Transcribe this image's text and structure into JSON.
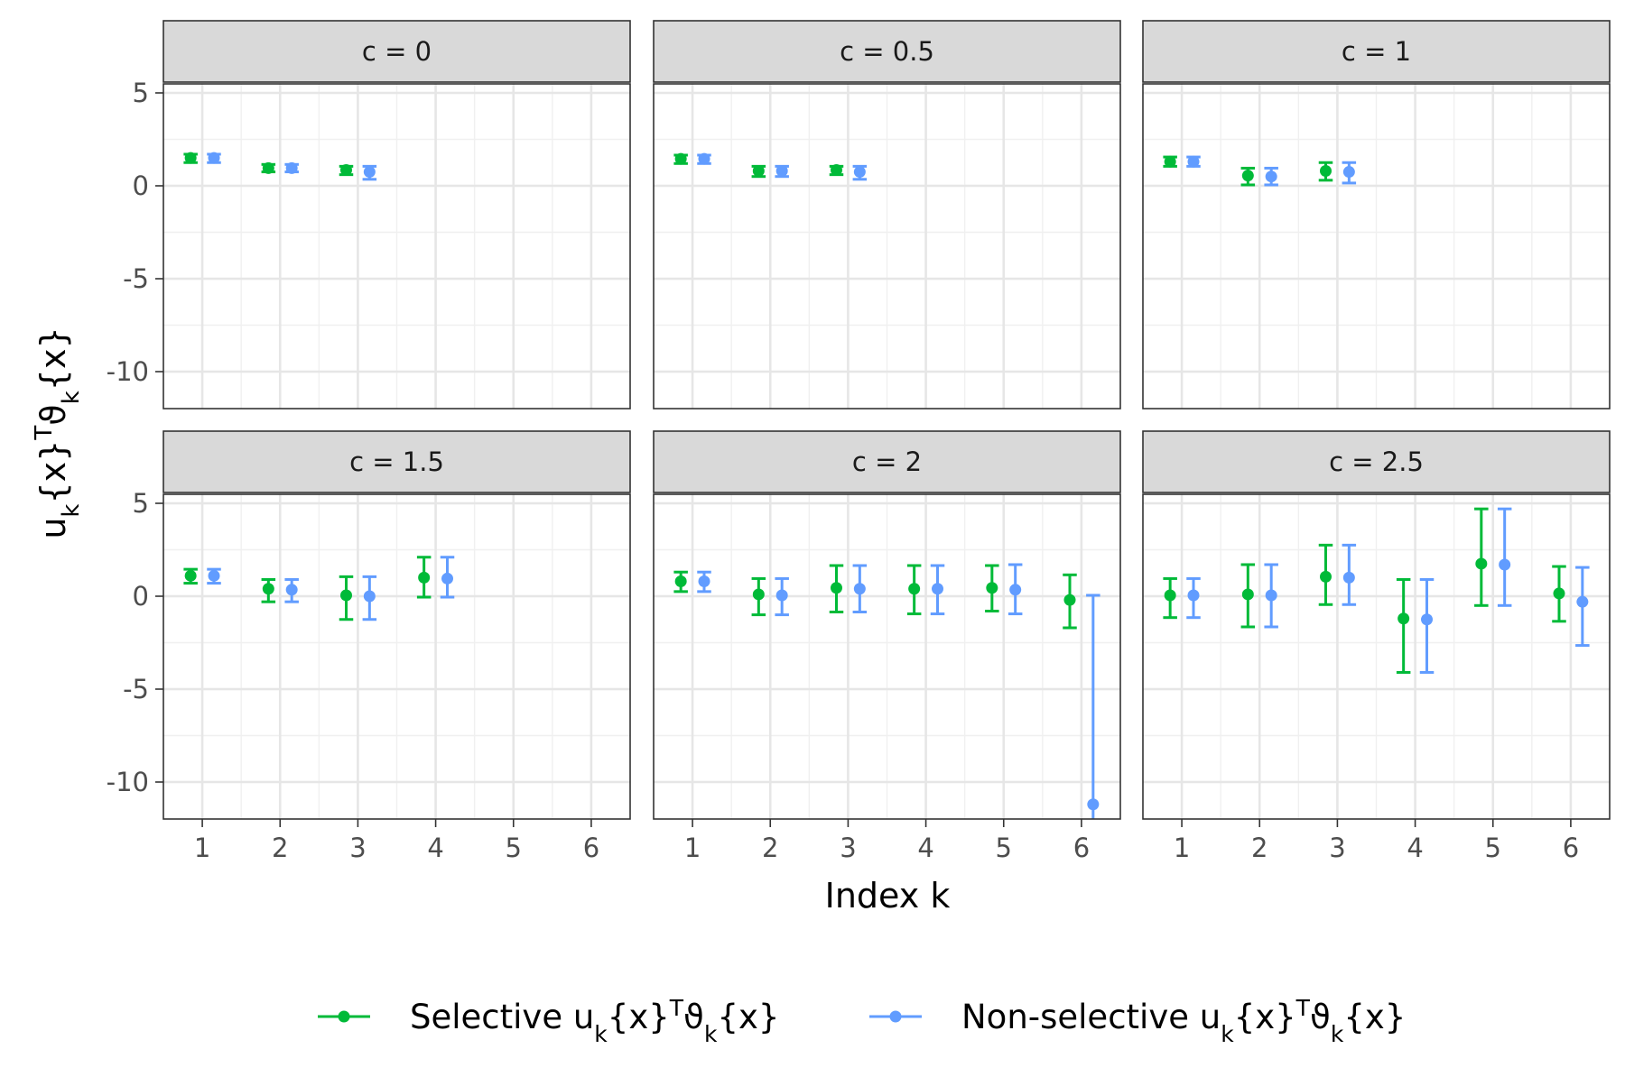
{
  "chart_data": {
    "type": "scatter",
    "subtype": "faceted point-range (errorbar) plot",
    "facet_layout": {
      "rows": 2,
      "cols": 3
    },
    "xlabel": "Index k",
    "ylabel": "u_k{x}^T ϑ_k{x}",
    "x_ticks": [
      "1",
      "2",
      "3",
      "4",
      "5",
      "6"
    ],
    "y_ticks": [
      "5",
      "0",
      "-5",
      "-10"
    ],
    "xlim": [
      0.5,
      6.5
    ],
    "ylim": [
      -12,
      8
    ],
    "grid": true,
    "legend": {
      "position": "bottom",
      "entries": [
        {
          "label_main": "Selective u",
          "label_rest": "{x}",
          "label_tail": "{x}",
          "color": "#00BA38"
        },
        {
          "label_main": "Non-selective u",
          "label_rest": "{x}",
          "label_tail": "{x}",
          "color": "#619CFF"
        }
      ]
    },
    "series_colors": {
      "selective": "#00BA38",
      "non_selective": "#619CFF"
    },
    "facets": [
      {
        "label": "c = 0",
        "selective": [
          {
            "x": 1,
            "y": 1.5,
            "low": 1.25,
            "high": 1.7
          },
          {
            "x": 2,
            "y": 0.95,
            "low": 0.75,
            "high": 1.15
          },
          {
            "x": 3,
            "y": 0.85,
            "low": 0.6,
            "high": 1.05
          }
        ],
        "non_selective": [
          {
            "x": 1,
            "y": 1.5,
            "low": 1.25,
            "high": 1.7
          },
          {
            "x": 2,
            "y": 0.95,
            "low": 0.75,
            "high": 1.15
          },
          {
            "x": 3,
            "y": 0.75,
            "low": 0.35,
            "high": 1.05
          }
        ]
      },
      {
        "label": "c = 0.5",
        "selective": [
          {
            "x": 1,
            "y": 1.45,
            "low": 1.2,
            "high": 1.65
          },
          {
            "x": 2,
            "y": 0.8,
            "low": 0.5,
            "high": 1.05
          },
          {
            "x": 3,
            "y": 0.85,
            "low": 0.6,
            "high": 1.05
          }
        ],
        "non_selective": [
          {
            "x": 1,
            "y": 1.45,
            "low": 1.2,
            "high": 1.65
          },
          {
            "x": 2,
            "y": 0.8,
            "low": 0.5,
            "high": 1.05
          },
          {
            "x": 3,
            "y": 0.75,
            "low": 0.35,
            "high": 1.05
          }
        ]
      },
      {
        "label": "c = 1",
        "selective": [
          {
            "x": 1,
            "y": 1.3,
            "low": 1.05,
            "high": 1.55
          },
          {
            "x": 2,
            "y": 0.55,
            "low": 0.05,
            "high": 0.95
          },
          {
            "x": 3,
            "y": 0.8,
            "low": 0.3,
            "high": 1.25
          }
        ],
        "non_selective": [
          {
            "x": 1,
            "y": 1.3,
            "low": 1.05,
            "high": 1.55
          },
          {
            "x": 2,
            "y": 0.5,
            "low": 0.05,
            "high": 0.95
          },
          {
            "x": 3,
            "y": 0.75,
            "low": 0.15,
            "high": 1.25
          }
        ]
      },
      {
        "label": "c = 1.5",
        "selective": [
          {
            "x": 1,
            "y": 1.1,
            "low": 0.7,
            "high": 1.45
          },
          {
            "x": 2,
            "y": 0.4,
            "low": -0.3,
            "high": 0.9
          },
          {
            "x": 3,
            "y": 0.05,
            "low": -1.25,
            "high": 1.05
          },
          {
            "x": 4,
            "y": 1.0,
            "low": -0.05,
            "high": 2.1
          }
        ],
        "non_selective": [
          {
            "x": 1,
            "y": 1.1,
            "low": 0.7,
            "high": 1.45
          },
          {
            "x": 2,
            "y": 0.35,
            "low": -0.3,
            "high": 0.9
          },
          {
            "x": 3,
            "y": 0.0,
            "low": -1.25,
            "high": 1.05
          },
          {
            "x": 4,
            "y": 0.95,
            "low": -0.05,
            "high": 2.1
          }
        ]
      },
      {
        "label": "c = 2",
        "selective": [
          {
            "x": 1,
            "y": 0.8,
            "low": 0.25,
            "high": 1.3
          },
          {
            "x": 2,
            "y": 0.1,
            "low": -1.0,
            "high": 0.95
          },
          {
            "x": 3,
            "y": 0.45,
            "low": -0.85,
            "high": 1.65
          },
          {
            "x": 4,
            "y": 0.4,
            "low": -0.95,
            "high": 1.65
          },
          {
            "x": 5,
            "y": 0.45,
            "low": -0.8,
            "high": 1.65
          },
          {
            "x": 6,
            "y": -0.2,
            "low": -1.7,
            "high": 1.15
          }
        ],
        "non_selective": [
          {
            "x": 1,
            "y": 0.8,
            "low": 0.25,
            "high": 1.3
          },
          {
            "x": 2,
            "y": 0.05,
            "low": -1.0,
            "high": 0.95
          },
          {
            "x": 3,
            "y": 0.4,
            "low": -0.85,
            "high": 1.65
          },
          {
            "x": 4,
            "y": 0.4,
            "low": -0.95,
            "high": 1.65
          },
          {
            "x": 5,
            "y": 0.35,
            "low": -0.95,
            "high": 1.7
          },
          {
            "x": 6,
            "y": -11.2,
            "low": -12.5,
            "high": 0.05
          }
        ]
      },
      {
        "label": "c = 2.5",
        "selective": [
          {
            "x": 1,
            "y": 0.05,
            "low": -1.15,
            "high": 0.95
          },
          {
            "x": 2,
            "y": 0.1,
            "low": -1.65,
            "high": 1.7
          },
          {
            "x": 3,
            "y": 1.05,
            "low": -0.45,
            "high": 2.75
          },
          {
            "x": 4,
            "y": -1.2,
            "low": -4.1,
            "high": 0.9
          },
          {
            "x": 5,
            "y": 1.75,
            "low": -0.5,
            "high": 4.7
          },
          {
            "x": 6,
            "y": 0.15,
            "low": -1.35,
            "high": 1.6
          }
        ],
        "non_selective": [
          {
            "x": 1,
            "y": 0.05,
            "low": -1.15,
            "high": 0.95
          },
          {
            "x": 2,
            "y": 0.05,
            "low": -1.65,
            "high": 1.7
          },
          {
            "x": 3,
            "y": 1.0,
            "low": -0.45,
            "high": 2.75
          },
          {
            "x": 4,
            "y": -1.25,
            "low": -4.1,
            "high": 0.9
          },
          {
            "x": 5,
            "y": 1.7,
            "low": -0.5,
            "high": 4.7
          },
          {
            "x": 6,
            "y": -0.3,
            "low": -2.65,
            "high": 1.55
          }
        ]
      }
    ]
  }
}
